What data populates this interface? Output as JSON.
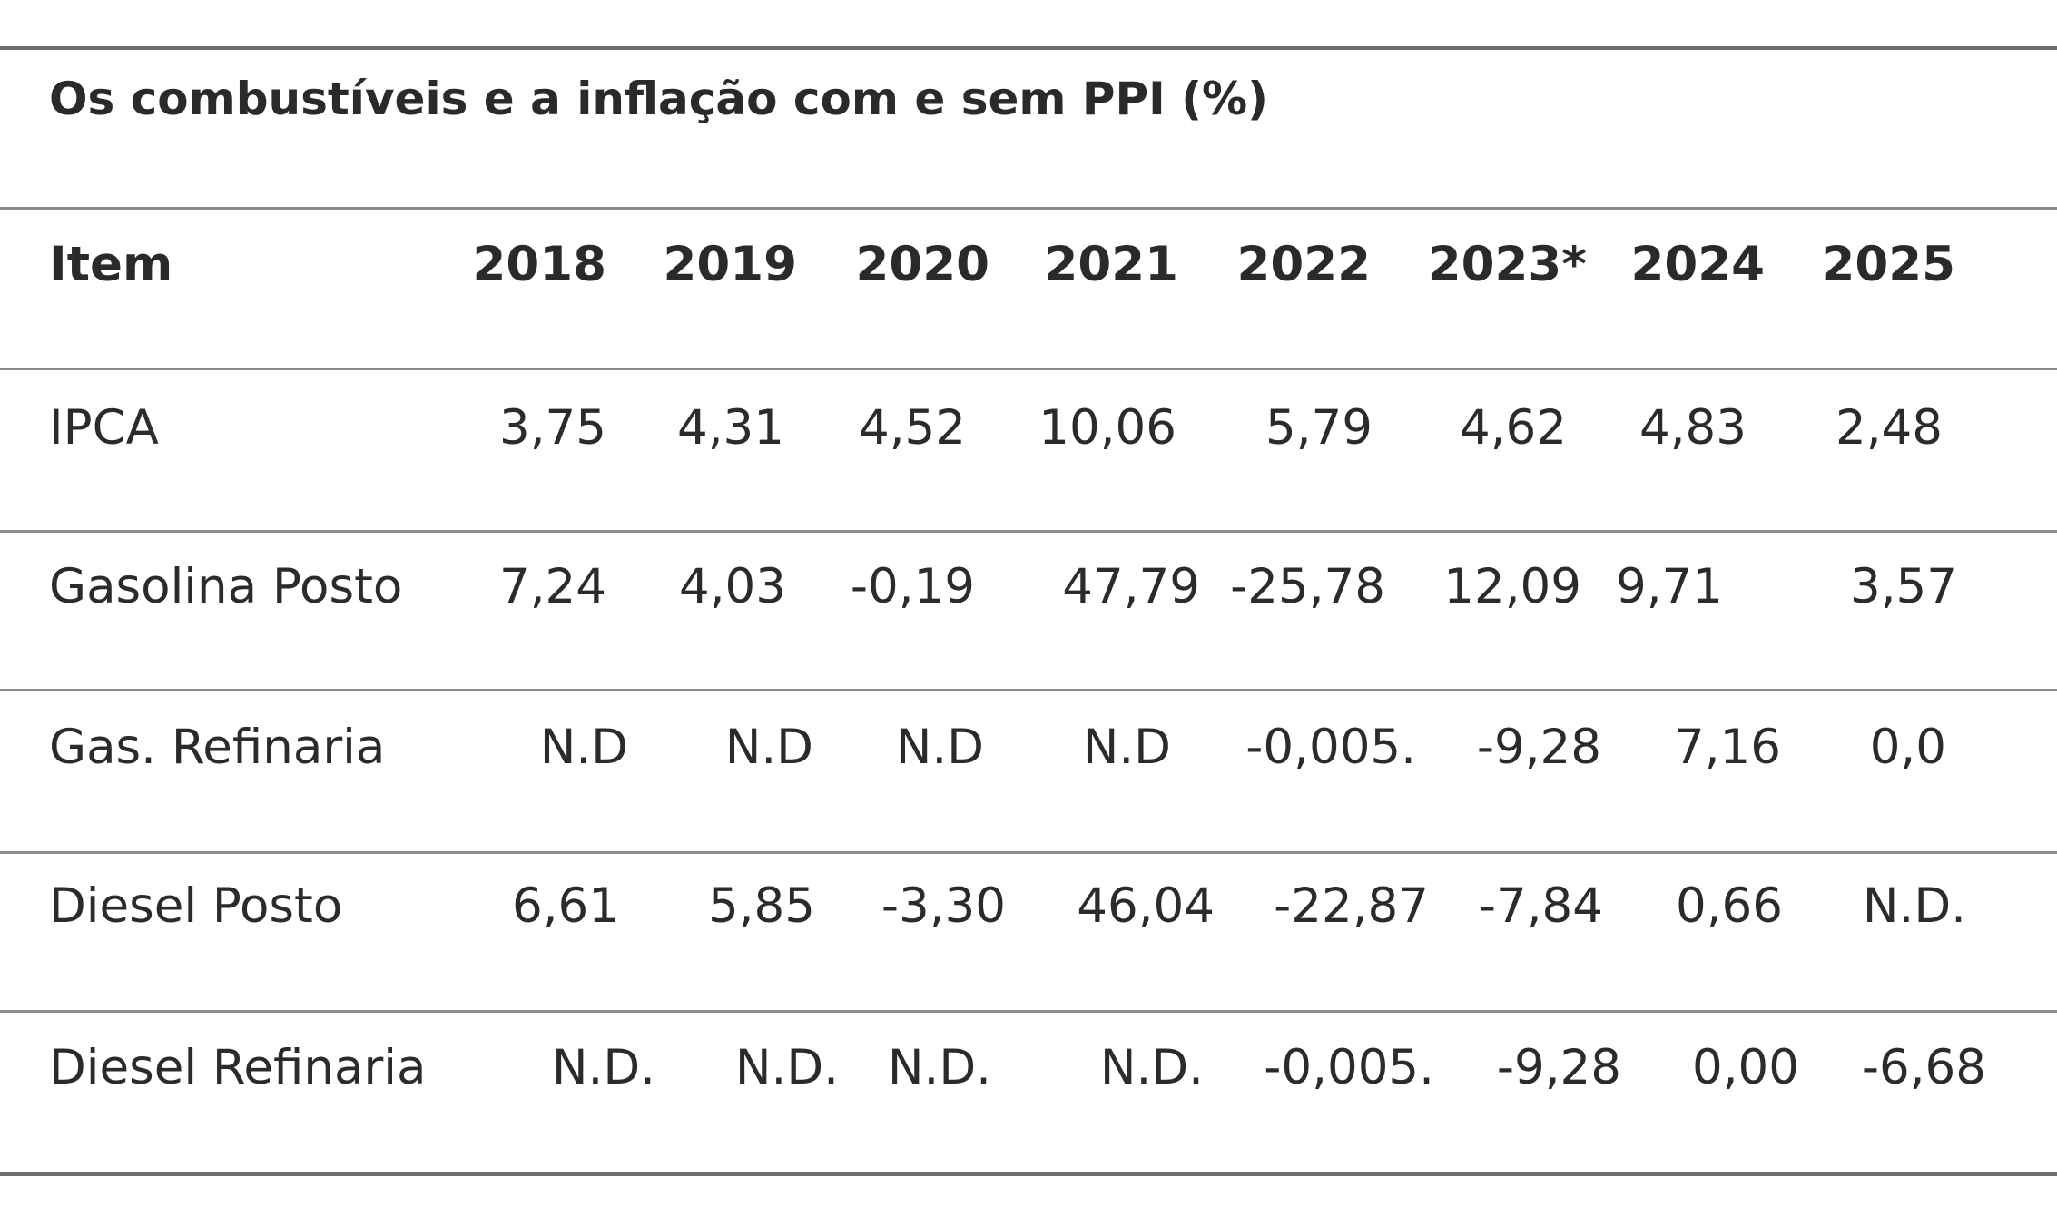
{
  "table": {
    "title": "Os combustíveis e a inflação com e sem PPI (%)",
    "header": {
      "item": "Item",
      "years": [
        "2018",
        "2019",
        "2020",
        "2021",
        "2022",
        "2023*",
        "2024",
        "2025"
      ]
    },
    "rows": [
      {
        "label": "IPCA",
        "values": [
          "3,75",
          "4,31",
          "4,52",
          "10,06",
          "5,79",
          "4,62",
          "4,83",
          "2,48"
        ]
      },
      {
        "label": "Gasolina Posto",
        "values": [
          "7,24",
          "4,03",
          "-0,19",
          "47,79",
          "-25,78",
          "12,09",
          "9,71",
          "3,57"
        ]
      },
      {
        "label": "Gas. Refinaria",
        "values": [
          "N.D",
          "N.D",
          "N.D",
          "N.D",
          "-0,005.",
          "-9,28",
          "7,16",
          "0,0"
        ]
      },
      {
        "label": "Diesel Posto",
        "values": [
          "6,61",
          "5,85",
          "-3,30",
          "46,04",
          "-22,87",
          "-7,84",
          "0,66",
          "N.D."
        ]
      },
      {
        "label": "Diesel Refinaria",
        "values": [
          "N.D.",
          "N.D.",
          "N.D.",
          "N.D.",
          "-0,005.",
          "-9,28",
          "0,00",
          "-6,68"
        ]
      }
    ]
  }
}
